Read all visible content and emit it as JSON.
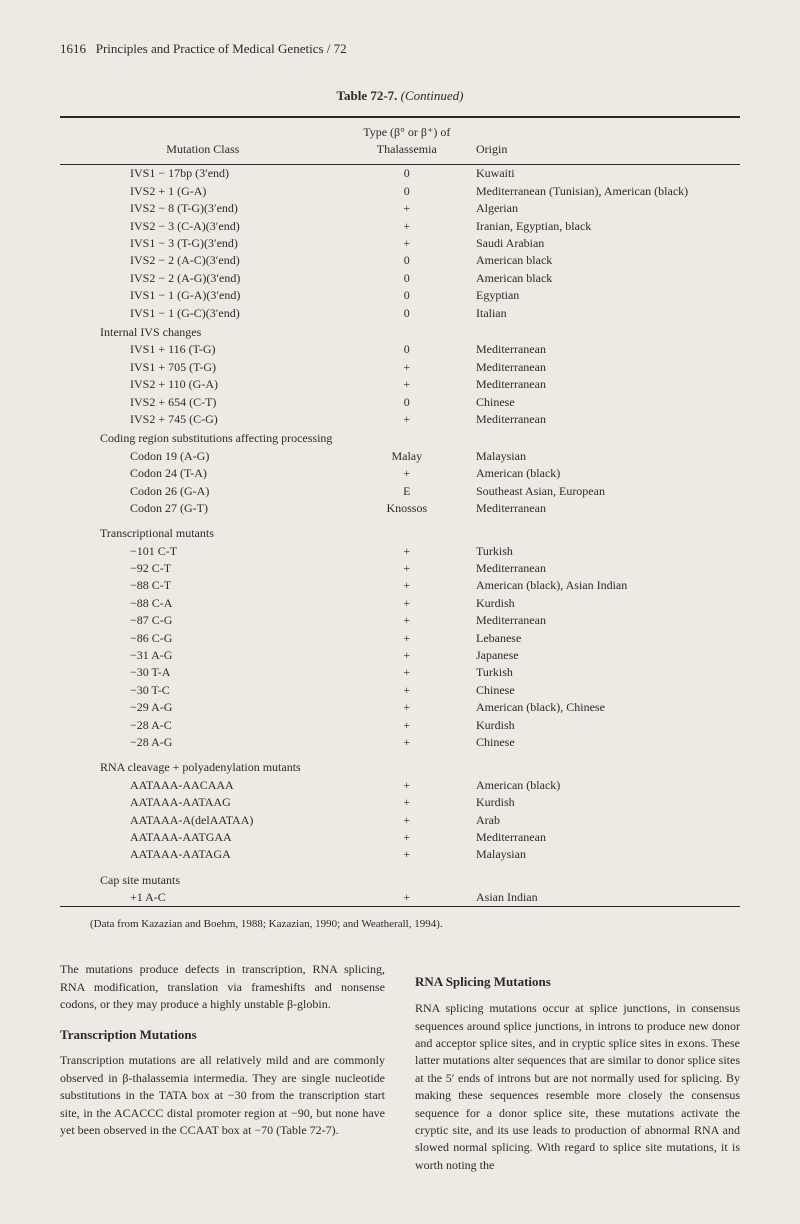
{
  "header": {
    "page_number": "1616",
    "title": "Principles and Practice of Medical Genetics / 72"
  },
  "table": {
    "caption_label": "Table 72-7.",
    "caption_suffix": "(Continued)",
    "columns": {
      "c1": "Mutation Class",
      "c2_line1": "Type (β° or β⁺) of",
      "c2_line2": "Thalassemia",
      "c3": "Origin"
    },
    "rows": [
      {
        "kind": "data",
        "indent": 1,
        "c1": "IVS1 − 17bp (3′end)",
        "c2": "0",
        "c3": "Kuwaiti"
      },
      {
        "kind": "data",
        "indent": 1,
        "c1": "IVS2 + 1 (G-A)",
        "c2": "0",
        "c3": "Mediterranean (Tunisian), American (black)"
      },
      {
        "kind": "data",
        "indent": 1,
        "c1": "IVS2 − 8 (T-G)(3′end)",
        "c2": "+",
        "c3": "Algerian"
      },
      {
        "kind": "data",
        "indent": 1,
        "c1": "IVS2 − 3 (C-A)(3′end)",
        "c2": "+",
        "c3": "Iranian, Egyptian, black"
      },
      {
        "kind": "data",
        "indent": 1,
        "c1": "IVS1 − 3 (T-G)(3′end)",
        "c2": "+",
        "c3": "Saudi Arabian"
      },
      {
        "kind": "data",
        "indent": 1,
        "c1": "IVS2 − 2 (A-C)(3′end)",
        "c2": "0",
        "c3": "American black"
      },
      {
        "kind": "data",
        "indent": 1,
        "c1": "IVS2 − 2 (A-G)(3′end)",
        "c2": "0",
        "c3": "American black"
      },
      {
        "kind": "data",
        "indent": 1,
        "c1": "IVS1 − 1 (G-A)(3′end)",
        "c2": "0",
        "c3": "Egyptian"
      },
      {
        "kind": "data",
        "indent": 1,
        "c1": "IVS1 − 1 (G-C)(3′end)",
        "c2": "0",
        "c3": "Italian"
      },
      {
        "kind": "group",
        "indent": 0,
        "c1": "Internal IVS changes"
      },
      {
        "kind": "data",
        "indent": 1,
        "c1": "IVS1 + 116 (T-G)",
        "c2": "0",
        "c3": "Mediterranean"
      },
      {
        "kind": "data",
        "indent": 1,
        "c1": "IVS1 + 705 (T-G)",
        "c2": "+",
        "c3": "Mediterranean"
      },
      {
        "kind": "data",
        "indent": 1,
        "c1": "IVS2 + 110 (G-A)",
        "c2": "+",
        "c3": "Mediterranean"
      },
      {
        "kind": "data",
        "indent": 1,
        "c1": "IVS2 + 654 (C-T)",
        "c2": "0",
        "c3": "Chinese"
      },
      {
        "kind": "data",
        "indent": 1,
        "c1": "IVS2 + 745 (C-G)",
        "c2": "+",
        "c3": "Mediterranean"
      },
      {
        "kind": "group",
        "indent": 0,
        "c1": "Coding region substitutions affecting processing"
      },
      {
        "kind": "data",
        "indent": 1,
        "c1": "Codon 19 (A-G)",
        "c2": "Malay",
        "c3": "Malaysian"
      },
      {
        "kind": "data",
        "indent": 1,
        "c1": "Codon 24 (T-A)",
        "c2": "+",
        "c3": "American (black)"
      },
      {
        "kind": "data",
        "indent": 1,
        "c1": "Codon 26 (G-A)",
        "c2": "E",
        "c3": "Southeast Asian, European"
      },
      {
        "kind": "data",
        "indent": 1,
        "c1": "Codon 27 (G-T)",
        "c2": "Knossos",
        "c3": "Mediterranean"
      },
      {
        "kind": "spacer"
      },
      {
        "kind": "group",
        "indent": 0,
        "c1": "Transcriptional mutants"
      },
      {
        "kind": "data",
        "indent": 1,
        "c1": "−101 C-T",
        "c2": "+",
        "c3": "Turkish"
      },
      {
        "kind": "data",
        "indent": 1,
        "c1": "−92 C-T",
        "c2": "+",
        "c3": "Mediterranean"
      },
      {
        "kind": "data",
        "indent": 1,
        "c1": "−88 C-T",
        "c2": "+",
        "c3": "American (black), Asian Indian"
      },
      {
        "kind": "data",
        "indent": 1,
        "c1": "−88 C-A",
        "c2": "+",
        "c3": "Kurdish"
      },
      {
        "kind": "data",
        "indent": 1,
        "c1": "−87 C-G",
        "c2": "+",
        "c3": "Mediterranean"
      },
      {
        "kind": "data",
        "indent": 1,
        "c1": "−86 C-G",
        "c2": "+",
        "c3": "Lebanese"
      },
      {
        "kind": "data",
        "indent": 1,
        "c1": "−31 A-G",
        "c2": "+",
        "c3": "Japanese"
      },
      {
        "kind": "data",
        "indent": 1,
        "c1": "−30 T-A",
        "c2": "+",
        "c3": "Turkish"
      },
      {
        "kind": "data",
        "indent": 1,
        "c1": "−30 T-C",
        "c2": "+",
        "c3": "Chinese"
      },
      {
        "kind": "data",
        "indent": 1,
        "c1": "−29 A-G",
        "c2": "+",
        "c3": "American (black), Chinese"
      },
      {
        "kind": "data",
        "indent": 1,
        "c1": "−28 A-C",
        "c2": "+",
        "c3": "Kurdish"
      },
      {
        "kind": "data",
        "indent": 1,
        "c1": "−28 A-G",
        "c2": "+",
        "c3": "Chinese"
      },
      {
        "kind": "spacer"
      },
      {
        "kind": "group",
        "indent": 0,
        "c1": "RNA cleavage + polyadenylation mutants"
      },
      {
        "kind": "data",
        "indent": 1,
        "c1": "AATAAA-AACAAA",
        "c2": "+",
        "c3": "American (black)"
      },
      {
        "kind": "data",
        "indent": 1,
        "c1": "AATAAA-AATAAG",
        "c2": "+",
        "c3": "Kurdish"
      },
      {
        "kind": "data",
        "indent": 1,
        "c1": "AATAAA-A(delAATAA)",
        "c2": "+",
        "c3": "Arab"
      },
      {
        "kind": "data",
        "indent": 1,
        "c1": "AATAAA-AATGAA",
        "c2": "+",
        "c3": "Mediterranean"
      },
      {
        "kind": "data",
        "indent": 1,
        "c1": "AATAAA-AATAGA",
        "c2": "+",
        "c3": "Malaysian"
      },
      {
        "kind": "spacer"
      },
      {
        "kind": "group",
        "indent": 0,
        "c1": "Cap site mutants"
      },
      {
        "kind": "data",
        "indent": 1,
        "c1": "+1 A-C",
        "c2": "+",
        "c3": "Asian Indian"
      }
    ],
    "footnote": "(Data from Kazazian and Boehm, 1988; Kazazian, 1990; and Weatherall, 1994)."
  },
  "body": {
    "left": {
      "p1": "The mutations produce defects in transcription, RNA splicing, RNA modification, translation via frameshifts and nonsense codons, or they may produce a highly unstable β-globin.",
      "h1": "Transcription Mutations",
      "p2": "Transcription mutations are all relatively mild and are commonly observed in β-thalassemia intermedia. They are single nucleotide substitutions in the TATA box at −30 from the transcription start site, in the ACACCC distal promoter region at −90, but none have yet been observed in the CCAAT box at −70 (Table 72-7)."
    },
    "right": {
      "h1": "RNA Splicing Mutations",
      "p1": "RNA splicing mutations occur at splice junctions, in consensus sequences around splice junctions, in introns to produce new donor and acceptor splice sites, and in cryptic splice sites in exons. These latter mutations alter sequences that are similar to donor splice sites at the 5′ ends of introns but are not normally used for splicing. By making these sequences resemble more closely the consensus sequence for a donor splice site, these mutations activate the cryptic site, and its use leads to production of abnormal RNA and slowed normal splicing. With regard to splice site mutations, it is worth noting the"
    }
  }
}
